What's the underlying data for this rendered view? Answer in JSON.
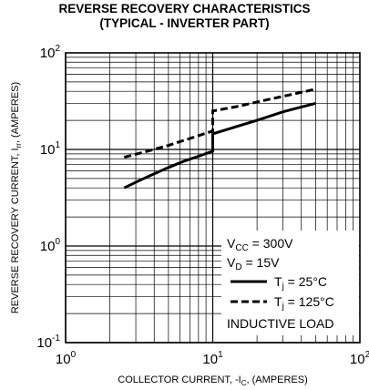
{
  "chart_data": {
    "type": "line",
    "title": "REVERSE RECOVERY CHARACTERISTICS",
    "subtitle": "(TYPICAL - INVERTER PART)",
    "xlabel": "COLLECTOR CURRENT, -I",
    "xlabel_sub": "C",
    "xlabel_suffix": ", (AMPERES)",
    "ylabel": "REVERSE RECOVERY CURRENT, I",
    "ylabel_sub": "rr",
    "ylabel_suffix": ", (AMPERES)",
    "x_scale": "log",
    "y_scale": "log",
    "xlim": [
      1,
      100
    ],
    "ylim": [
      0.1,
      100
    ],
    "grid": true,
    "x_ticks": [
      {
        "value": 1,
        "base": "10",
        "exp": "0"
      },
      {
        "value": 10,
        "base": "10",
        "exp": "1"
      },
      {
        "value": 100,
        "base": "10",
        "exp": "2"
      }
    ],
    "y_ticks": [
      {
        "value": 0.1,
        "base": "10",
        "exp": "-1"
      },
      {
        "value": 1,
        "base": "10",
        "exp": "0"
      },
      {
        "value": 10,
        "base": "10",
        "exp": "1"
      },
      {
        "value": 100,
        "base": "10",
        "exp": "2"
      }
    ],
    "series": [
      {
        "name": "T<sub>j</sub> = 25°C",
        "name_text": "Tj = 25°C",
        "style": "solid",
        "color": "#000000",
        "x": [
          2.5,
          3.2,
          4.0,
          5.0,
          6.3,
          8.0,
          10.0,
          10.0,
          15.0,
          20.0,
          30.0,
          40.0,
          50.0
        ],
        "y": [
          4.0,
          4.8,
          5.6,
          6.5,
          7.5,
          8.5,
          9.6,
          14.5,
          17.5,
          20.0,
          24.5,
          27.5,
          30.0
        ]
      },
      {
        "name": "T<sub>j</sub> = 125°C",
        "name_text": "Tj = 125°C",
        "style": "dashed",
        "color": "#000000",
        "x": [
          2.5,
          3.5,
          5.0,
          7.0,
          10.0,
          10.0,
          15.0,
          20.0,
          30.0,
          40.0,
          50.0
        ],
        "y": [
          8.3,
          9.5,
          11.0,
          13.0,
          15.5,
          25.0,
          28.0,
          31.0,
          35.5,
          39.0,
          42.0
        ]
      }
    ],
    "legend": {
      "placement": "bottom-right",
      "lines": [
        {
          "prefix": "V",
          "sub": "CC",
          "suffix": " = 300V"
        },
        {
          "prefix": "V",
          "sub": "D",
          "suffix": " = 15V"
        }
      ],
      "footer": "INDUCTIVE LOAD"
    }
  }
}
